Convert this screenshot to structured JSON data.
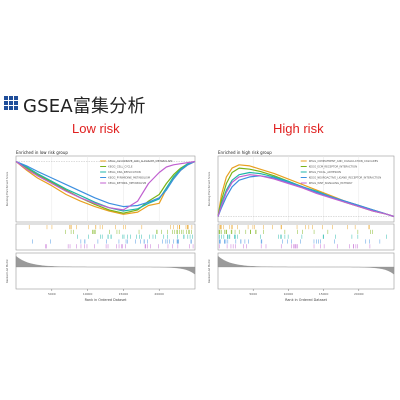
{
  "slide": {
    "title": "GSEA富集分析",
    "left_heading": "Low risk",
    "right_heading": "High risk",
    "logo_icon": "grid-logo-icon",
    "heading_color": "#e0201f"
  },
  "chart_data": [
    {
      "type": "line",
      "panel": "left",
      "title": "Enriched in low risk group",
      "ylabel_top": "Running Enrichment Score",
      "ylabel_bottom": "Ranked List Metric",
      "xlabel": "Rank in Ordered Dataset",
      "xlim": [
        0,
        25000
      ],
      "ylim": [
        -0.55,
        0.05
      ],
      "x_ticks": [
        "5000",
        "10000",
        "15000",
        "20000"
      ],
      "legend_position": "top-right",
      "series": [
        {
          "name": "KEGG_ASCORBATE_AND_ALDARATE_METABOLISM",
          "color": "#e8a020",
          "x": [
            0,
            1500,
            3000,
            5000,
            7000,
            9000,
            11000,
            13000,
            15000,
            17000,
            18500,
            20000,
            21000,
            22000,
            23000,
            24000,
            25000
          ],
          "y": [
            0,
            -0.08,
            -0.15,
            -0.22,
            -0.3,
            -0.36,
            -0.41,
            -0.45,
            -0.48,
            -0.46,
            -0.4,
            -0.38,
            -0.25,
            -0.15,
            -0.08,
            -0.03,
            0
          ]
        },
        {
          "name": "KEGG_CELL_CYCLE",
          "color": "#7ab317",
          "x": [
            0,
            1500,
            3000,
            5000,
            7000,
            9000,
            11000,
            13000,
            15000,
            17000,
            18500,
            20000,
            21000,
            22000,
            23000,
            24000,
            25000
          ],
          "y": [
            0,
            -0.06,
            -0.12,
            -0.19,
            -0.26,
            -0.33,
            -0.39,
            -0.44,
            -0.47,
            -0.44,
            -0.36,
            -0.3,
            -0.2,
            -0.12,
            -0.06,
            -0.02,
            0
          ]
        },
        {
          "name": "KEGG_DNA_REPLICATION",
          "color": "#1db5a8",
          "x": [
            0,
            1500,
            3000,
            5000,
            7000,
            9000,
            11000,
            13000,
            15000,
            17000,
            18500,
            20000,
            21000,
            22000,
            23000,
            24000,
            25000
          ],
          "y": [
            0,
            -0.05,
            -0.11,
            -0.18,
            -0.25,
            -0.31,
            -0.37,
            -0.42,
            -0.45,
            -0.43,
            -0.38,
            -0.34,
            -0.24,
            -0.14,
            -0.07,
            -0.02,
            0
          ]
        },
        {
          "name": "KEGG_PYRIMIDINE_METABOLISM",
          "color": "#3c8fe0",
          "x": [
            0,
            1500,
            3000,
            5000,
            7000,
            9000,
            11000,
            13000,
            15000,
            17000,
            18500,
            20000,
            21000,
            22000,
            23000,
            24000,
            25000
          ],
          "y": [
            0,
            -0.04,
            -0.09,
            -0.15,
            -0.21,
            -0.27,
            -0.33,
            -0.38,
            -0.41,
            -0.4,
            -0.37,
            -0.33,
            -0.26,
            -0.16,
            -0.08,
            -0.03,
            0
          ]
        },
        {
          "name": "KEGG_RETINOL_METABOLISM",
          "color": "#c060d0",
          "x": [
            0,
            1500,
            3000,
            5000,
            7000,
            9000,
            11000,
            13000,
            15000,
            17000,
            18500,
            20000,
            21000,
            22000,
            23000,
            24000,
            25000
          ],
          "y": [
            0,
            -0.07,
            -0.13,
            -0.2,
            -0.27,
            -0.33,
            -0.38,
            -0.42,
            -0.44,
            -0.36,
            -0.2,
            -0.1,
            -0.05,
            -0.03,
            -0.02,
            -0.01,
            0
          ]
        }
      ]
    },
    {
      "type": "line",
      "panel": "right",
      "title": "Enriched in high risk group",
      "ylabel_top": "Running Enrichment Score",
      "ylabel_bottom": "Ranked List Metric",
      "xlabel": "Rank in Ordered Dataset",
      "xlim": [
        0,
        25000
      ],
      "ylim": [
        -0.05,
        0.55
      ],
      "x_ticks": [
        "5000",
        "10000",
        "15000",
        "20000"
      ],
      "legend_position": "top-right",
      "series": [
        {
          "name": "KEGG_COMPLEMENT_AND_COAGULATION_CASCADES",
          "color": "#e8a020",
          "x": [
            0,
            500,
            1200,
            2000,
            3000,
            4500,
            6000,
            8000,
            10000,
            12000,
            14000,
            16000,
            18000,
            20000,
            22000,
            24000,
            25000
          ],
          "y": [
            0,
            0.2,
            0.36,
            0.44,
            0.47,
            0.46,
            0.43,
            0.39,
            0.34,
            0.29,
            0.24,
            0.19,
            0.14,
            0.1,
            0.06,
            0.02,
            0
          ]
        },
        {
          "name": "KEGG_ECM_RECEPTOR_INTERACTION",
          "color": "#7ab317",
          "x": [
            0,
            500,
            1200,
            2000,
            3000,
            4500,
            6000,
            8000,
            10000,
            12000,
            14000,
            16000,
            18000,
            20000,
            22000,
            24000,
            25000
          ],
          "y": [
            0,
            0.15,
            0.3,
            0.4,
            0.44,
            0.43,
            0.41,
            0.37,
            0.32,
            0.27,
            0.22,
            0.18,
            0.13,
            0.09,
            0.05,
            0.02,
            0
          ]
        },
        {
          "name": "KEGG_FOCAL_ADHESION",
          "color": "#1db5a8",
          "x": [
            0,
            500,
            1200,
            2000,
            3000,
            4500,
            6000,
            8000,
            10000,
            12000,
            14000,
            16000,
            18000,
            20000,
            22000,
            24000,
            25000
          ],
          "y": [
            0,
            0.12,
            0.24,
            0.33,
            0.38,
            0.4,
            0.39,
            0.36,
            0.32,
            0.27,
            0.23,
            0.18,
            0.14,
            0.1,
            0.06,
            0.02,
            0
          ]
        },
        {
          "name": "KEGG_NEUROACTIVE_LIGAND_RECEPTOR_INTERACTION",
          "color": "#3c8fe0",
          "x": [
            0,
            500,
            1200,
            2000,
            3000,
            4500,
            6000,
            8000,
            10000,
            12000,
            14000,
            16000,
            18000,
            20000,
            22000,
            24000,
            25000
          ],
          "y": [
            0,
            0.08,
            0.18,
            0.27,
            0.33,
            0.36,
            0.37,
            0.35,
            0.31,
            0.27,
            0.22,
            0.18,
            0.14,
            0.1,
            0.06,
            0.02,
            0
          ]
        },
        {
          "name": "KEGG_WNT_SIGNALING_PATHWAY",
          "color": "#c060d0",
          "x": [
            0,
            500,
            1200,
            2000,
            3000,
            4500,
            6000,
            8000,
            10000,
            12000,
            14000,
            16000,
            18000,
            20000,
            22000,
            24000,
            25000
          ],
          "y": [
            0,
            0.1,
            0.22,
            0.31,
            0.36,
            0.38,
            0.37,
            0.34,
            0.3,
            0.26,
            0.21,
            0.17,
            0.13,
            0.09,
            0.05,
            0.02,
            0
          ]
        }
      ]
    }
  ]
}
